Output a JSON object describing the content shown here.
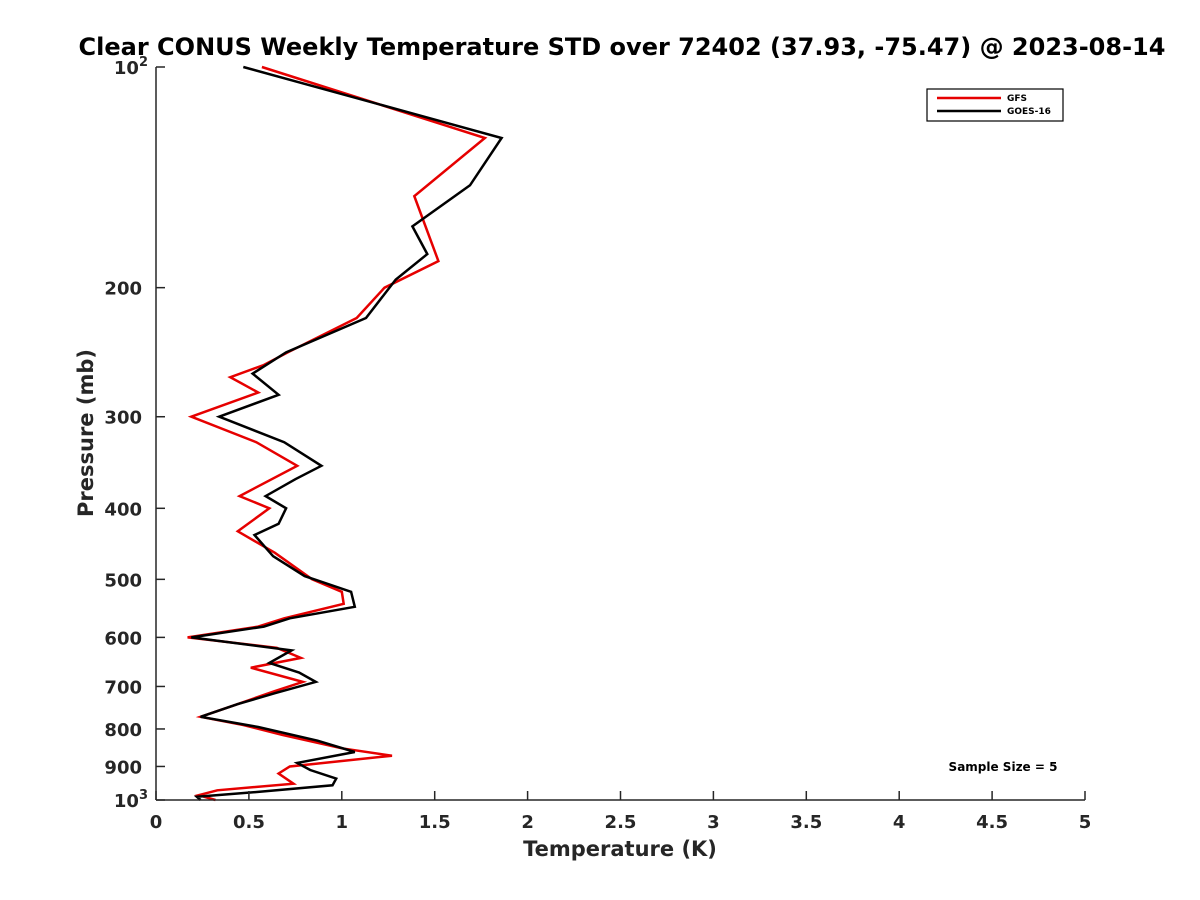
{
  "chart_data": {
    "type": "line",
    "title": "Clear CONUS Weekly Temperature STD over 72402 (37.93, -75.47) @ 2023-08-14",
    "xlabel": "Temperature (K)",
    "ylabel": "Pressure (mb)",
    "xlim": [
      0,
      5
    ],
    "ylim": [
      1000,
      100
    ],
    "yscale": "log",
    "y_reversed": true,
    "grid": false,
    "legend_position": "top-right",
    "x_ticks": [
      "0",
      "0.5",
      "1",
      "1.5",
      "2",
      "2.5",
      "3",
      "3.5",
      "4",
      "4.5",
      "5"
    ],
    "x_tick_values": [
      0,
      0.5,
      1,
      1.5,
      2,
      2.5,
      3,
      3.5,
      4,
      4.5,
      5
    ],
    "y_ticks": [
      {
        "value": 100,
        "base": "10",
        "exp": "2"
      },
      {
        "value": 200,
        "label": "200"
      },
      {
        "value": 300,
        "label": "300"
      },
      {
        "value": 400,
        "label": "400"
      },
      {
        "value": 500,
        "label": "500"
      },
      {
        "value": 600,
        "label": "600"
      },
      {
        "value": 700,
        "label": "700"
      },
      {
        "value": 800,
        "label": "800"
      },
      {
        "value": 900,
        "label": "900"
      },
      {
        "value": 1000,
        "base": "10",
        "exp": "3"
      }
    ],
    "series": [
      {
        "name": "GFS",
        "color": "#e60000",
        "points": [
          [
            0.57,
            100
          ],
          [
            1.77,
            125
          ],
          [
            1.39,
            150
          ],
          [
            1.52,
            184
          ],
          [
            1.23,
            200
          ],
          [
            1.08,
            220
          ],
          [
            0.71,
            245
          ],
          [
            0.58,
            255
          ],
          [
            0.4,
            265
          ],
          [
            0.55,
            278
          ],
          [
            0.19,
            300
          ],
          [
            0.54,
            325
          ],
          [
            0.76,
            350
          ],
          [
            0.45,
            385
          ],
          [
            0.61,
            400
          ],
          [
            0.44,
            430
          ],
          [
            0.64,
            460
          ],
          [
            0.84,
            500
          ],
          [
            1.0,
            520
          ],
          [
            1.01,
            540
          ],
          [
            0.69,
            565
          ],
          [
            0.55,
            580
          ],
          [
            0.17,
            600
          ],
          [
            0.65,
            620
          ],
          [
            0.78,
            640
          ],
          [
            0.51,
            660
          ],
          [
            0.79,
            690
          ],
          [
            0.64,
            710
          ],
          [
            0.44,
            740
          ],
          [
            0.24,
            770
          ],
          [
            0.47,
            790
          ],
          [
            0.68,
            815
          ],
          [
            1.0,
            850
          ],
          [
            1.27,
            870
          ],
          [
            0.72,
            900
          ],
          [
            0.66,
            920
          ],
          [
            0.74,
            950
          ],
          [
            0.33,
            970
          ],
          [
            0.23,
            985
          ],
          [
            0.32,
            1000
          ]
        ]
      },
      {
        "name": "GOES-16",
        "color": "#000000",
        "points": [
          [
            0.47,
            100
          ],
          [
            1.86,
            125
          ],
          [
            1.69,
            145
          ],
          [
            1.38,
            165
          ],
          [
            1.46,
            180
          ],
          [
            1.29,
            195
          ],
          [
            1.13,
            220
          ],
          [
            0.7,
            245
          ],
          [
            0.52,
            262
          ],
          [
            0.66,
            280
          ],
          [
            0.34,
            300
          ],
          [
            0.69,
            325
          ],
          [
            0.89,
            350
          ],
          [
            0.75,
            365
          ],
          [
            0.59,
            385
          ],
          [
            0.7,
            400
          ],
          [
            0.66,
            420
          ],
          [
            0.53,
            435
          ],
          [
            0.63,
            465
          ],
          [
            0.8,
            495
          ],
          [
            1.05,
            520
          ],
          [
            1.07,
            545
          ],
          [
            0.72,
            565
          ],
          [
            0.58,
            580
          ],
          [
            0.19,
            600
          ],
          [
            0.73,
            625
          ],
          [
            0.61,
            650
          ],
          [
            0.77,
            670
          ],
          [
            0.86,
            690
          ],
          [
            0.64,
            715
          ],
          [
            0.44,
            740
          ],
          [
            0.24,
            770
          ],
          [
            0.55,
            795
          ],
          [
            0.87,
            830
          ],
          [
            1.07,
            860
          ],
          [
            0.76,
            890
          ],
          [
            0.83,
            910
          ],
          [
            0.97,
            935
          ],
          [
            0.95,
            955
          ],
          [
            0.55,
            975
          ],
          [
            0.22,
            990
          ],
          [
            0.24,
            1000
          ]
        ]
      }
    ],
    "annotation": "Sample Size = 5"
  }
}
